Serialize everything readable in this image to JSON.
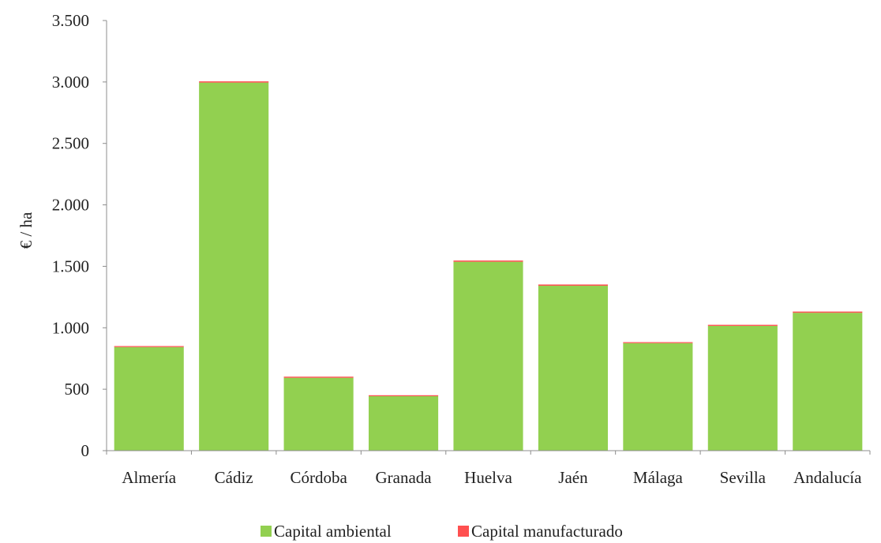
{
  "chart_data": {
    "type": "bar",
    "stacked": true,
    "title": "",
    "xlabel": "",
    "ylabel": "€ / ha",
    "ylim": [
      0,
      3500
    ],
    "yticks": [
      0,
      500,
      1000,
      1500,
      2000,
      2500,
      3000,
      3500
    ],
    "ytick_labels": [
      "0",
      "500",
      "1.000",
      "1.500",
      "2.000",
      "2.500",
      "3.000",
      "3.500"
    ],
    "categories": [
      "Almería",
      "Cádiz",
      "Córdoba",
      "Granada",
      "Huelva",
      "Jaén",
      "Málaga",
      "Sevilla",
      "Andalucía"
    ],
    "series": [
      {
        "name": "Capital ambiental",
        "color": "#92d050",
        "values": [
          843,
          2995,
          593,
          443,
          1537,
          1342,
          875,
          1015,
          1122
        ]
      },
      {
        "name": "Capital manufacturado",
        "color": "#ff5050",
        "values": [
          8,
          10,
          9,
          8,
          10,
          10,
          8,
          9,
          10
        ]
      }
    ],
    "grid": false,
    "legend_position": "bottom"
  }
}
